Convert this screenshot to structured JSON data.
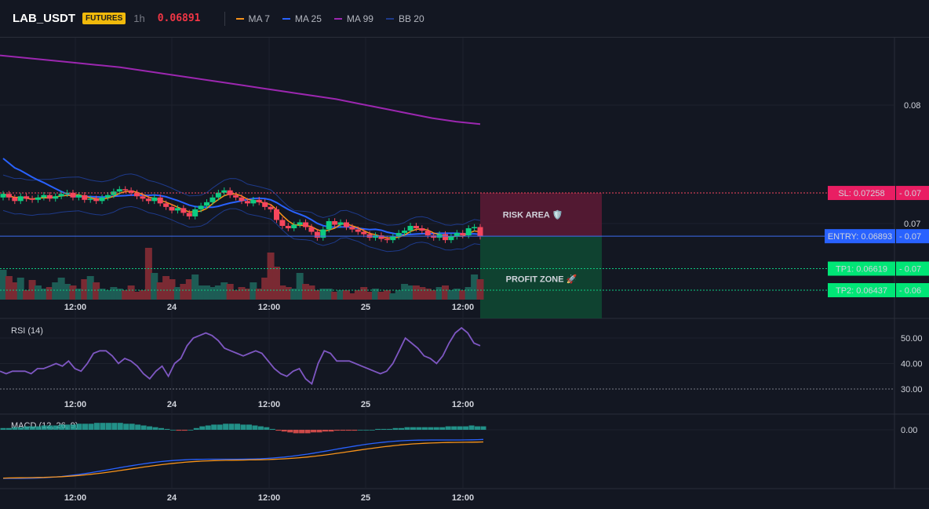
{
  "header": {
    "symbol": "LAB_USDT",
    "badge": "FUTURES",
    "timeframe": "1h",
    "price": "0.06891",
    "legend": [
      {
        "label": "MA 7",
        "color": "#f7931a"
      },
      {
        "label": "MA 25",
        "color": "#2962ff"
      },
      {
        "label": "MA 99",
        "color": "#9c27b0"
      },
      {
        "label": "BB 20",
        "color": "#1e3a8a"
      }
    ]
  },
  "chart_data": [
    {
      "type": "candlestick",
      "title": "LAB_USDT",
      "x_tick_labels": [
        "12:00",
        "24",
        "12:00",
        "25",
        "12:00"
      ],
      "y_tick_labels": [
        "0.08",
        "0.07"
      ],
      "levels": {
        "sl": {
          "label": "SL: 0.07258",
          "right": "0.07",
          "value": 0.07258
        },
        "entry": {
          "label": "ENTRY: 0.06893",
          "right": "0.07",
          "value": 0.06893
        },
        "tp1": {
          "label": "TP1: 0.06619",
          "right": "0.07",
          "value": 0.06619
        },
        "tp2": {
          "label": "TP2: 0.06437",
          "right": "0.06",
          "value": 0.06437
        }
      },
      "zones": {
        "risk": "RISK AREA 🛡️",
        "profit": "PROFIT ZONE 🚀"
      },
      "series": [
        {
          "name": "MA 7",
          "color": "#f7931a"
        },
        {
          "name": "MA 25",
          "color": "#2962ff"
        },
        {
          "name": "MA 99",
          "color": "#9c27b0"
        },
        {
          "name": "BB 20",
          "color": "#1e3a8a"
        }
      ],
      "close": [
        0.0725,
        0.0722,
        0.0719,
        0.0723,
        0.0721,
        0.072,
        0.0722,
        0.0724,
        0.0721,
        0.0723,
        0.0725,
        0.0726,
        0.0722,
        0.0724,
        0.072,
        0.0721,
        0.0719,
        0.0722,
        0.0724,
        0.0727,
        0.0729,
        0.0728,
        0.0726,
        0.0723,
        0.0721,
        0.0719,
        0.0722,
        0.0717,
        0.0714,
        0.0711,
        0.0713,
        0.0709,
        0.0706,
        0.0712,
        0.0715,
        0.0718,
        0.0722,
        0.0726,
        0.0728,
        0.0724,
        0.0722,
        0.0719,
        0.0717,
        0.072,
        0.0718,
        0.0714,
        0.0712,
        0.0703,
        0.0698,
        0.0696,
        0.0699,
        0.0701,
        0.0697,
        0.0693,
        0.0688,
        0.0695,
        0.0702,
        0.0699,
        0.0701,
        0.0697,
        0.0695,
        0.0693,
        0.0691,
        0.0688,
        0.069,
        0.0687,
        0.0686,
        0.0689,
        0.0692,
        0.0694,
        0.0698,
        0.0696,
        0.0694,
        0.069,
        0.0688,
        0.0691,
        0.0686,
        0.0689,
        0.0692,
        0.069,
        0.0696,
        0.0697,
        0.0689
      ],
      "open": [
        0.0722,
        0.0725,
        0.0722,
        0.0719,
        0.0723,
        0.0721,
        0.072,
        0.0722,
        0.0724,
        0.0721,
        0.0723,
        0.0725,
        0.0726,
        0.0722,
        0.0724,
        0.072,
        0.0721,
        0.0719,
        0.0722,
        0.0724,
        0.0727,
        0.0729,
        0.0728,
        0.0726,
        0.0723,
        0.0721,
        0.0719,
        0.0722,
        0.0717,
        0.0714,
        0.0711,
        0.0713,
        0.0709,
        0.0706,
        0.0712,
        0.0715,
        0.0718,
        0.0722,
        0.0726,
        0.0728,
        0.0724,
        0.0722,
        0.0719,
        0.0717,
        0.072,
        0.0718,
        0.0714,
        0.0712,
        0.0703,
        0.0698,
        0.0696,
        0.0699,
        0.0701,
        0.0697,
        0.0693,
        0.0688,
        0.0695,
        0.0702,
        0.0699,
        0.0701,
        0.0697,
        0.0695,
        0.0693,
        0.0691,
        0.0688,
        0.069,
        0.0687,
        0.0686,
        0.0689,
        0.0692,
        0.0694,
        0.0698,
        0.0696,
        0.0694,
        0.069,
        0.0688,
        0.0691,
        0.0686,
        0.0689,
        0.0692,
        0.069,
        0.0696,
        0.0697
      ],
      "ma99": [
        0.0842,
        0.084,
        0.0838,
        0.0836,
        0.0834,
        0.0832,
        0.0829,
        0.0826,
        0.0823,
        0.082,
        0.0817,
        0.0814,
        0.0811,
        0.0808,
        0.0805,
        0.0801,
        0.0797,
        0.0793,
        0.0789,
        0.0786,
        0.0784
      ],
      "volume": [
        38,
        30,
        22,
        28,
        12,
        25,
        18,
        14,
        16,
        22,
        28,
        20,
        18,
        14,
        26,
        30,
        22,
        14,
        12,
        16,
        14,
        12,
        18,
        10,
        12,
        66,
        34,
        22,
        30,
        26,
        16,
        20,
        26,
        32,
        18,
        18,
        16,
        18,
        22,
        20,
        12,
        16,
        14,
        22,
        14,
        28,
        60,
        42,
        18,
        16,
        14,
        34,
        20,
        18,
        12,
        14,
        14,
        10,
        12,
        12,
        8,
        12,
        16,
        10,
        14,
        10,
        12,
        8,
        12,
        20,
        18,
        18,
        16,
        14,
        12,
        16,
        18,
        12,
        14,
        12,
        16,
        32,
        26
      ]
    },
    {
      "type": "line",
      "title": "RSI (14)",
      "y_tick_labels": [
        "50.00",
        "40.00",
        "30.00"
      ],
      "x_tick_labels": [
        "12:00",
        "24",
        "12:00",
        "25",
        "12:00"
      ],
      "values": [
        37,
        36,
        37,
        37,
        37,
        36,
        38,
        38,
        39,
        40,
        39,
        41,
        38,
        37,
        40,
        44,
        45,
        45,
        43,
        40,
        42,
        41,
        39,
        36,
        34,
        37,
        39,
        35,
        40,
        42,
        47,
        50,
        51,
        52,
        51,
        49,
        46,
        45,
        44,
        43,
        44,
        45,
        44,
        41,
        38,
        36,
        35,
        37,
        38,
        34,
        32,
        40,
        45,
        44,
        41,
        41,
        41,
        40,
        39,
        38,
        37,
        36,
        37,
        40,
        45,
        50,
        48,
        46,
        43,
        42,
        40,
        43,
        48,
        52,
        54,
        52,
        48,
        47
      ],
      "ylim": [
        25,
        55
      ]
    },
    {
      "type": "bar",
      "title": "MACD (12, 26, 9)",
      "y_tick_labels": [
        "0.00"
      ],
      "x_tick_labels": [
        "12:00",
        "24",
        "12:00",
        "25",
        "12:00"
      ],
      "histogram": [
        2,
        2,
        3,
        3,
        4,
        4,
        4,
        5,
        5,
        5,
        6,
        6,
        6,
        7,
        7,
        7,
        8,
        8,
        8,
        8,
        8,
        7,
        7,
        6,
        5,
        4,
        3,
        2,
        1,
        0,
        -1,
        -1,
        0,
        2,
        4,
        5,
        6,
        6,
        7,
        7,
        7,
        6,
        6,
        5,
        4,
        3,
        1,
        -1,
        -2,
        -3,
        -4,
        -4,
        -4,
        -3,
        -3,
        -2,
        -2,
        -1,
        -1,
        -1,
        -1,
        0,
        0,
        0,
        1,
        1,
        1,
        2,
        2,
        3,
        3,
        3,
        3,
        3,
        3,
        3,
        4,
        4,
        4,
        4,
        5,
        4,
        4
      ]
    }
  ]
}
